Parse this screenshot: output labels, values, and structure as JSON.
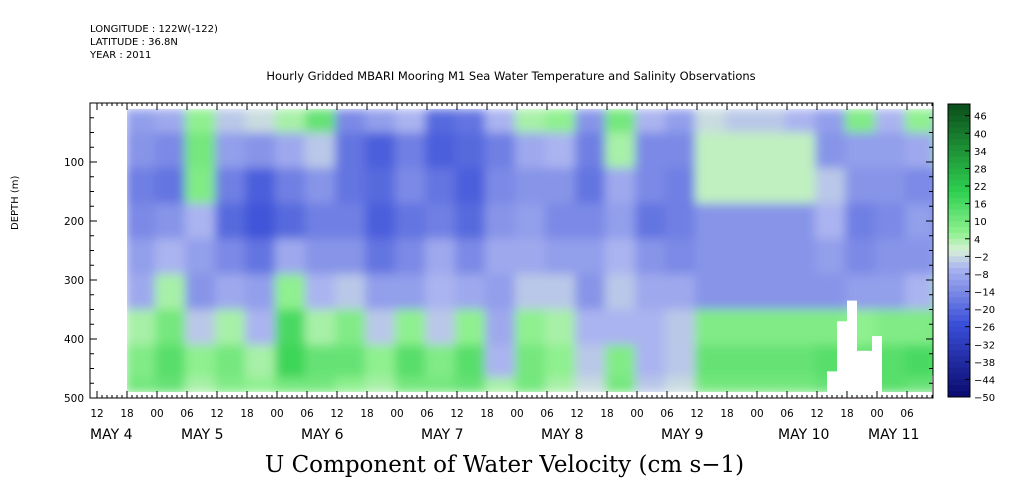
{
  "header": {
    "longitude": "LONGITUDE : 122W(-122)",
    "latitude": "LATITUDE : 36.8N",
    "year": "YEAR : 2011"
  },
  "chart_data": {
    "type": "heatmap",
    "title": "Hourly Gridded MBARI Mooring M1 Sea Water Temperature and Salinity Observations",
    "variable": "U Component of Water Velocity (cm s-1)",
    "ylabel": "DEPTH (m)",
    "yticks": [
      100,
      200,
      300,
      400,
      500
    ],
    "ylim": [
      500,
      0
    ],
    "xlim_hours": [
      0,
      168
    ],
    "hour_ticks": [
      "12",
      "18",
      "00",
      "06",
      "12",
      "18",
      "00",
      "06",
      "12",
      "18",
      "00",
      "06",
      "12",
      "18",
      "00",
      "06",
      "12",
      "18",
      "00",
      "06",
      "12",
      "18",
      "00",
      "06",
      "12",
      "18",
      "00",
      "06",
      "12",
      "18",
      "00",
      "06"
    ],
    "day_labels": [
      "MAY  4",
      "MAY  5",
      "MAY  6",
      "MAY  7",
      "MAY  8",
      "MAY  9",
      "MAY 10",
      "MAY 11"
    ],
    "colorbar_labels": [
      "46",
      "40",
      "34",
      "28",
      "22",
      "16",
      "10",
      "4",
      "-2",
      "-8",
      "-14",
      "-20",
      "-26",
      "-32",
      "-38",
      "-44",
      "-50"
    ],
    "colorbar_range": [
      -50,
      50
    ],
    "colors": {
      "neg_dark": "#0a0a6e",
      "neg_mid": "#3a4fd8",
      "neg_light": "#aab4f0",
      "zero": "#d8f0d8",
      "pos_light": "#8ff08f",
      "pos_mid": "#2fd050",
      "pos_dark": "#0a4d1a",
      "missing": "#ffffff"
    },
    "columns": [
      {
        "hour": 0,
        "u": [
          -10,
          -12,
          -16,
          -14,
          -10,
          -8,
          4,
          8,
          10
        ]
      },
      {
        "hour": 6,
        "u": [
          -8,
          -14,
          -18,
          -12,
          -6,
          4,
          10,
          14,
          12
        ]
      },
      {
        "hour": 12,
        "u": [
          6,
          10,
          8,
          -6,
          -10,
          -12,
          -4,
          6,
          4
        ]
      },
      {
        "hour": 18,
        "u": [
          -4,
          -10,
          -16,
          -20,
          -14,
          -8,
          4,
          10,
          8
        ]
      },
      {
        "hour": 24,
        "u": [
          -2,
          -12,
          -22,
          -24,
          -18,
          -10,
          -6,
          4,
          6
        ]
      },
      {
        "hour": 30,
        "u": [
          4,
          -8,
          -16,
          -20,
          -8,
          6,
          16,
          18,
          10
        ]
      },
      {
        "hour": 36,
        "u": [
          12,
          -4,
          -12,
          -16,
          -12,
          -6,
          4,
          12,
          10
        ]
      },
      {
        "hour": 42,
        "u": [
          -14,
          -18,
          -18,
          -16,
          -12,
          -4,
          8,
          12,
          6
        ]
      },
      {
        "hour": 48,
        "u": [
          -10,
          -22,
          -20,
          -22,
          -18,
          -10,
          -4,
          6,
          4
        ]
      },
      {
        "hour": 54,
        "u": [
          -6,
          -16,
          -14,
          -18,
          -14,
          -10,
          6,
          14,
          10
        ]
      },
      {
        "hour": 60,
        "u": [
          -20,
          -22,
          -18,
          -16,
          -8,
          -6,
          -4,
          8,
          10
        ]
      },
      {
        "hour": 66,
        "u": [
          -18,
          -20,
          -22,
          -20,
          -14,
          -8,
          6,
          14,
          12
        ]
      },
      {
        "hour": 72,
        "u": [
          -6,
          -16,
          -14,
          -12,
          -8,
          -10,
          -8,
          -6,
          4
        ]
      },
      {
        "hour": 78,
        "u": [
          4,
          -8,
          -12,
          -10,
          -8,
          -4,
          6,
          10,
          10
        ]
      },
      {
        "hour": 84,
        "u": [
          6,
          -6,
          -12,
          -14,
          -10,
          -4,
          4,
          6,
          4
        ]
      },
      {
        "hour": 90,
        "u": [
          -12,
          -16,
          -18,
          -14,
          -10,
          -12,
          -6,
          -4,
          -2
        ]
      },
      {
        "hour": 96,
        "u": [
          10,
          4,
          -8,
          -10,
          -6,
          -4,
          -6,
          8,
          10
        ]
      },
      {
        "hour": 102,
        "u": [
          -6,
          -14,
          -14,
          -18,
          -12,
          -8,
          -6,
          -6,
          -4
        ]
      },
      {
        "hour": 108,
        "u": [
          -10,
          -14,
          -16,
          -16,
          -14,
          -8,
          -4,
          -4,
          -2
        ]
      },
      {
        "hour": 114,
        "u": [
          -2,
          2,
          2,
          -12,
          -12,
          -12,
          8,
          12,
          10
        ]
      },
      {
        "hour": 120,
        "u": [
          -4,
          2,
          2,
          -12,
          -12,
          -12,
          8,
          12,
          10
        ]
      },
      {
        "hour": 126,
        "u": [
          -4,
          2,
          2,
          -12,
          -12,
          -12,
          8,
          12,
          10
        ]
      },
      {
        "hour": 132,
        "u": [
          -6,
          2,
          2,
          -12,
          -12,
          -12,
          8,
          12,
          10
        ]
      },
      {
        "hour": 138,
        "u": [
          -10,
          -12,
          -4,
          -6,
          -10,
          -12,
          8,
          14,
          12
        ]
      },
      {
        "hour": 144,
        "u": [
          8,
          -10,
          -12,
          -16,
          -14,
          -10,
          6,
          12,
          12
        ]
      },
      {
        "hour": 150,
        "u": [
          -6,
          -10,
          -12,
          -14,
          -12,
          -10,
          8,
          14,
          14
        ]
      },
      {
        "hour": 156,
        "u": [
          6,
          -8,
          -14,
          -10,
          -12,
          -6,
          8,
          16,
          12
        ]
      },
      {
        "hour": 162,
        "u": [
          -6,
          6,
          -12,
          -14,
          -8,
          6,
          12,
          14,
          10
        ]
      }
    ],
    "depth_levels": [
      20,
      80,
      140,
      200,
      260,
      320,
      380,
      440,
      490
    ],
    "missing_regions": [
      {
        "hour_start": 86,
        "hour_end": 88,
        "depth_top": 455,
        "depth_bottom": 490
      },
      {
        "hour_start": 88,
        "hour_end": 90,
        "depth_top": 370,
        "depth_bottom": 490
      },
      {
        "hour_start": 90,
        "hour_end": 92,
        "depth_top": 335,
        "depth_bottom": 490
      },
      {
        "hour_start": 92,
        "hour_end": 95,
        "depth_top": 420,
        "depth_bottom": 490
      },
      {
        "hour_start": 95,
        "hour_end": 97,
        "depth_top": 395,
        "depth_bottom": 490
      },
      {
        "hour_start": 107,
        "hour_end": 111,
        "depth_top": 462,
        "depth_bottom": 490
      },
      {
        "hour_start": 147,
        "hour_end": 149,
        "depth_top": 340,
        "depth_bottom": 490
      },
      {
        "hour_start": 145,
        "hour_end": 151,
        "depth_top": 455,
        "depth_bottom": 490
      }
    ]
  },
  "bottom_title": "U Component of Water Velocity (cm s−1)"
}
